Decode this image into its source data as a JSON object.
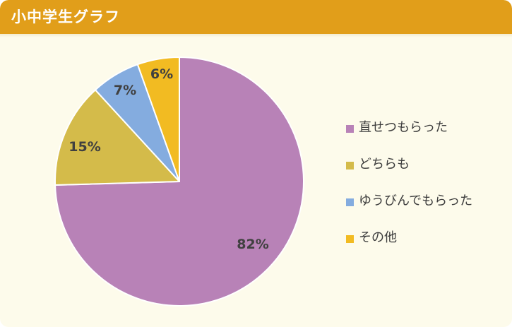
{
  "header": {
    "title": "小中学生グラフ"
  },
  "chart_data": {
    "type": "pie",
    "title": "小中学生グラフ",
    "categories": [
      "直せつもらった",
      "どちらも",
      "ゆうびんでもらった",
      "その他"
    ],
    "values": [
      82,
      15,
      7,
      6
    ],
    "labels": [
      "82%",
      "15%",
      "7%",
      "6%"
    ],
    "colors": [
      "#b882b7",
      "#d4bb4a",
      "#84acdf",
      "#f2bb22"
    ],
    "legend_position": "right"
  }
}
